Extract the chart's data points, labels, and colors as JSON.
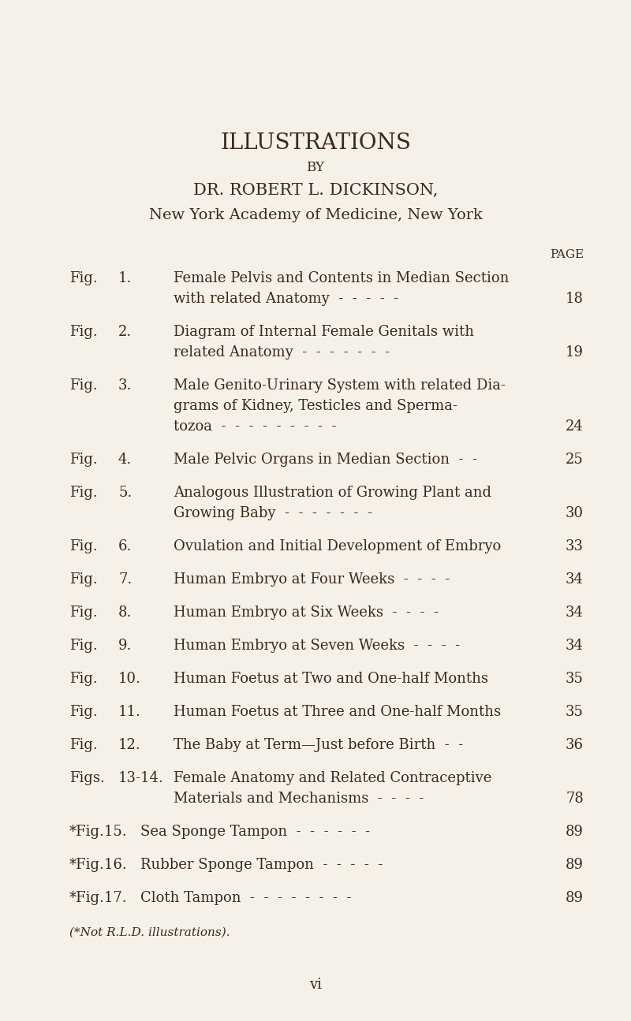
{
  "bg_color": "#f5f0e8",
  "text_color": "#3a2a1a",
  "title": "ILLUSTRATIONS",
  "by": "BY",
  "author": "DR. ROBERT L. DICKINSON,",
  "institution": "New York Academy of Medicine, New York",
  "page_label": "PAGE",
  "entries": [
    {
      "label": "Fig.",
      "num": "1.",
      "line1": "Female Pelvis and Contents in Median Section",
      "line2": "with related Anatomy  -  -  -  -  -",
      "page": "18",
      "type": "two"
    },
    {
      "label": "Fig.",
      "num": "2.",
      "line1": "Diagram of Internal Female Genitals with",
      "line2": "related Anatomy  -  -  -  -  -  -  -",
      "page": "19",
      "type": "two"
    },
    {
      "label": "Fig.",
      "num": "3.",
      "line1": "Male Genito-Urinary System with related Dia-",
      "line2": "grams of Kidney, Testicles and Sperma-",
      "line3": "tozoa  -  -  -  -  -  -  -  -  -",
      "page": "24",
      "type": "three"
    },
    {
      "label": "Fig.",
      "num": "4.",
      "line1": "Male Pelvic Organs in Median Section  -  -",
      "page": "25",
      "type": "one"
    },
    {
      "label": "Fig.",
      "num": "5.",
      "line1": "Analogous Illustration of Growing Plant and",
      "line2": "Growing Baby  -  -  -  -  -  -  -",
      "page": "30",
      "type": "two"
    },
    {
      "label": "Fig.",
      "num": "6.",
      "line1": "Ovulation and Initial Development of Embryo",
      "page": "33",
      "type": "one"
    },
    {
      "label": "Fig.",
      "num": "7.",
      "line1": "Human Embryo at Four Weeks  -  -  -  -",
      "page": "34",
      "type": "one"
    },
    {
      "label": "Fig.",
      "num": "8.",
      "line1": "Human Embryo at Six Weeks  -  -  -  -",
      "page": "34",
      "type": "one"
    },
    {
      "label": "Fig.",
      "num": "9.",
      "line1": "Human Embryo at Seven Weeks  -  -  -  -",
      "page": "34",
      "type": "one"
    },
    {
      "label": "Fig.",
      "num": "10.",
      "line1": "Human Foetus at Two and One-half Months",
      "page": "35",
      "type": "one"
    },
    {
      "label": "Fig.",
      "num": "11.",
      "line1": "Human Foetus at Three and One-half Months",
      "page": "35",
      "type": "one"
    },
    {
      "label": "Fig.",
      "num": "12.",
      "line1": "The Baby at Term—Just before Birth  -  -",
      "page": "36",
      "type": "one"
    },
    {
      "label": "Figs.",
      "num": "13-14.",
      "line1": "Female Anatomy and Related Contraceptive",
      "line2": "Materials and Mechanisms  -  -  -  -",
      "page": "78",
      "type": "two"
    },
    {
      "label": "*Fig.15.",
      "num": "",
      "line1": "Sea Sponge Tampon  -  -  -  -  -  -",
      "page": "89",
      "type": "special"
    },
    {
      "label": "*Fig.16.",
      "num": "",
      "line1": "Rubber Sponge Tampon  -  -  -  -  -",
      "page": "89",
      "type": "special"
    },
    {
      "label": "*Fig.17.",
      "num": "",
      "line1": "Cloth Tampon  -  -  -  -  -  -  -  -",
      "page": "89",
      "type": "special"
    }
  ],
  "footnote": "(*Not R.L.D. illustrations).",
  "page_num": "vi",
  "title_fontsize": 20,
  "by_fontsize": 12,
  "author_fontsize": 15,
  "institution_fontsize": 14,
  "entry_fontsize": 13,
  "footnote_fontsize": 11,
  "page_label_fontsize": 11
}
